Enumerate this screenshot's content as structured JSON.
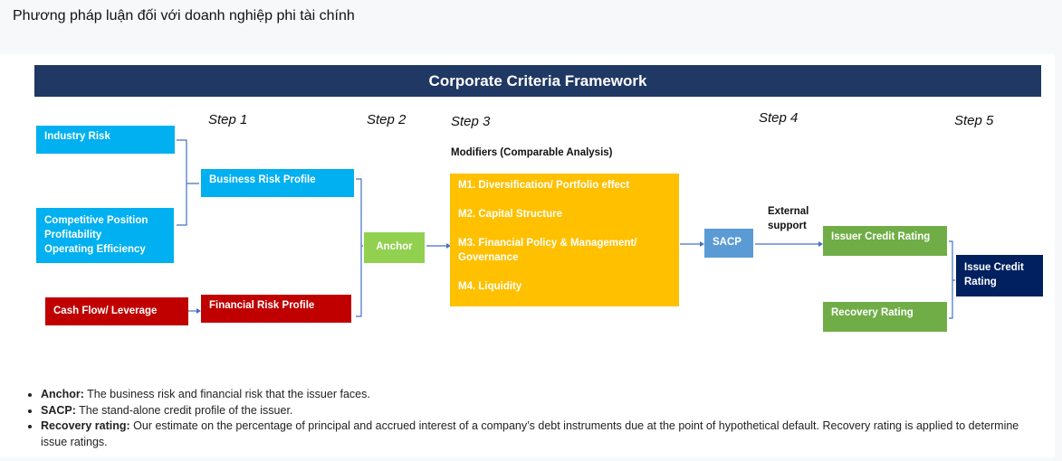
{
  "page_title": "Phương pháp luận đối với doanh nghiệp phi tài chính",
  "diagram": {
    "header": "Corporate Criteria Framework",
    "steps": [
      "Step 1",
      "Step 2",
      "Step 3",
      "Step 4",
      "Step 5"
    ],
    "industry_risk": "Industry Risk",
    "competitive_lines": [
      "Competitive Position",
      "Profitability",
      "Operating Efficiency"
    ],
    "business_risk_profile": "Business Risk Profile",
    "cash_flow": "Cash Flow/ Leverage",
    "financial_risk_profile": "Financial Risk Profile",
    "anchor": "Anchor",
    "modifiers_label": "Modifiers (Comparable Analysis)",
    "modifiers": [
      "M1. Diversification/ Portfolio effect",
      "M2. Capital Structure",
      "M3. Financial Policy & Management/ Governance",
      "M4. Liquidity"
    ],
    "sacp": "SACP",
    "external_support": "External support",
    "issuer_credit_rating": "Issuer Credit Rating",
    "recovery_rating": "Recovery Rating",
    "issue_credit_rating": "Issue Credit Rating",
    "colors": {
      "header": "#1f3864",
      "blue": "#00b0f0",
      "red": "#c00000",
      "green": "#70ad47",
      "anchor": "#92d050",
      "modifiers": "#ffc000",
      "sacp": "#5b9bd5",
      "issue": "#002060",
      "connector": "#4472c4"
    }
  },
  "notes": [
    {
      "term": "Anchor:",
      "text": " The business risk and financial risk that the issuer faces."
    },
    {
      "term": "SACP:",
      "text": " The stand-alone credit profile of the issuer."
    },
    {
      "term": "Recovery rating:",
      "text": " Our estimate on the percentage of principal and accrued interest of a company’s debt instruments due at the point of hypothetical default. Recovery rating is applied to determine issue ratings."
    }
  ]
}
